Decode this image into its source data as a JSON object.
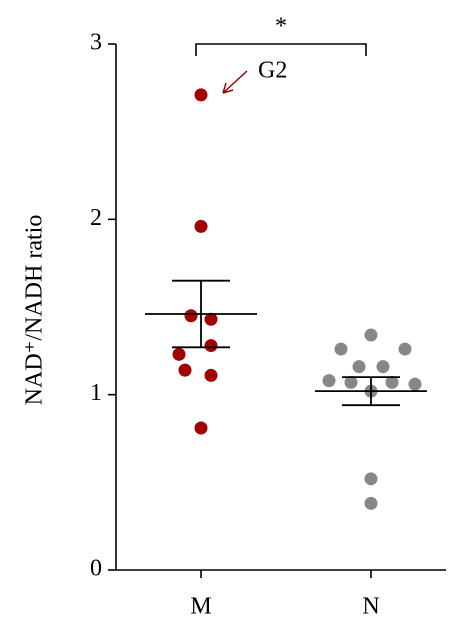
{
  "chart_data": {
    "type": "dot",
    "y_label": "NAD⁺/NADH ratio",
    "categories": [
      "M",
      "N"
    ],
    "groups": [
      {
        "color": "#a30000",
        "values": [
          2.71,
          1.96,
          1.45,
          1.43,
          1.28,
          1.23,
          1.14,
          1.11,
          0.81
        ],
        "mean": 1.46,
        "sem": 0.19
      },
      {
        "color": "#878787",
        "values": [
          1.34,
          1.26,
          1.26,
          1.16,
          1.16,
          1.08,
          1.07,
          1.07,
          1.06,
          1.02,
          0.52,
          0.38
        ],
        "mean": 1.02,
        "sem": 0.08
      }
    ],
    "ylim": [
      0,
      3
    ],
    "yticks": [
      0,
      1,
      2,
      3
    ],
    "annotations": [
      {
        "text": "*"
      },
      {
        "text": "G2",
        "color": "#a30000"
      }
    ]
  }
}
